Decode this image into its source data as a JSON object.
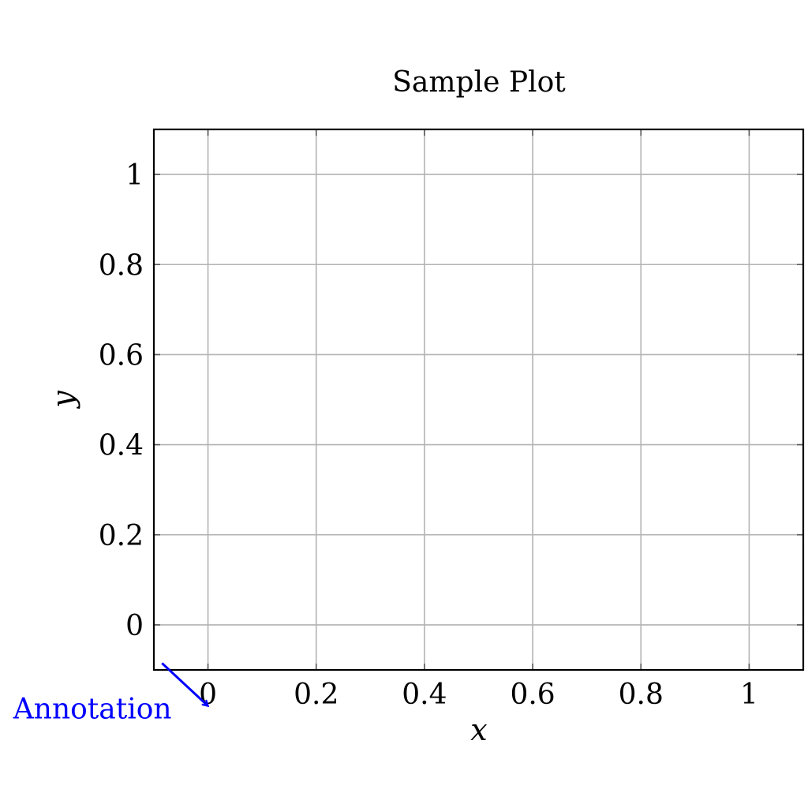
{
  "chart_data": {
    "type": "line",
    "title": "Sample Plot",
    "xlabel": "x",
    "ylabel": "y",
    "xlim": [
      -0.1,
      1.1
    ],
    "ylim": [
      -0.1,
      1.1
    ],
    "x_ticks": [
      0,
      0.2,
      0.4,
      0.6,
      0.8,
      1
    ],
    "x_tick_labels": [
      "0",
      "0.2",
      "0.4",
      "0.6",
      "0.8",
      "1"
    ],
    "y_ticks": [
      0,
      0.2,
      0.4,
      0.6,
      0.8,
      1
    ],
    "y_tick_labels": [
      "0",
      "0.2",
      "0.4",
      "0.6",
      "0.8",
      "1"
    ],
    "grid": true,
    "series": [],
    "annotations": [
      {
        "text": "Annotation",
        "color": "#0000ff",
        "arrow_tail": [
          -0.085,
          -0.085
        ],
        "arrow_head": [
          0,
          -0.18
        ]
      }
    ]
  }
}
